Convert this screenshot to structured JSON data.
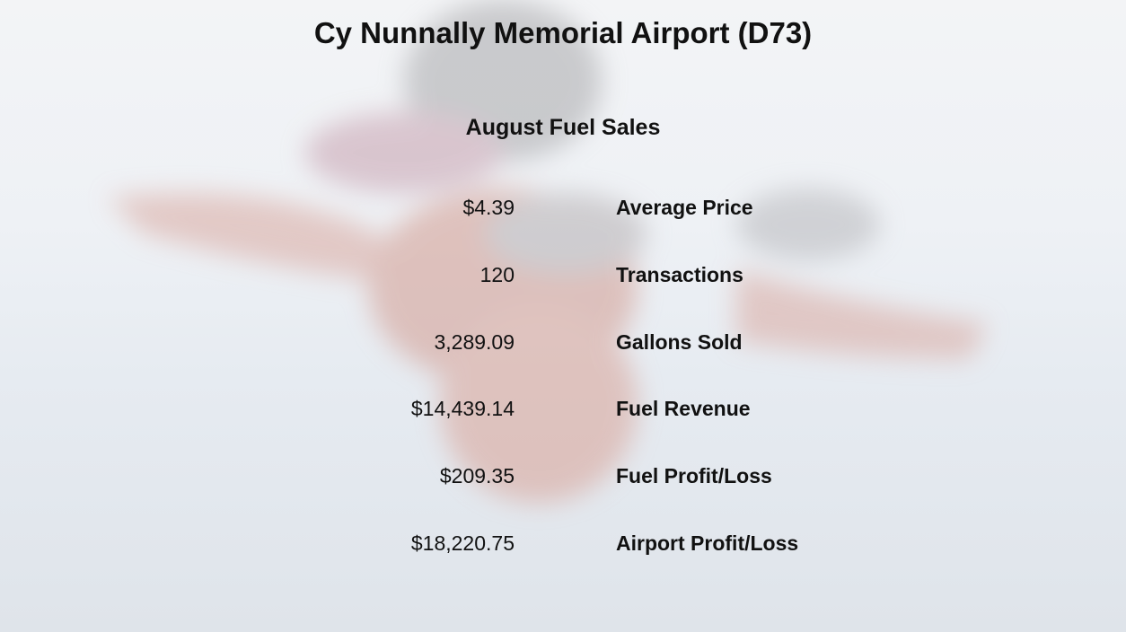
{
  "header": {
    "title": "Cy Nunnally Memorial Airport (D73)",
    "subtitle": "August Fuel Sales"
  },
  "table": {
    "rows": [
      [
        "$4.39",
        "Average Price"
      ],
      [
        "120",
        "Transactions"
      ],
      [
        "3,289.09",
        "Gallons Sold"
      ],
      [
        "$14,439.14",
        "Fuel Revenue"
      ],
      [
        "$209.35",
        "Fuel Profit/Loss"
      ],
      [
        "$18,220.75",
        "Airport Profit/Loss"
      ]
    ]
  }
}
